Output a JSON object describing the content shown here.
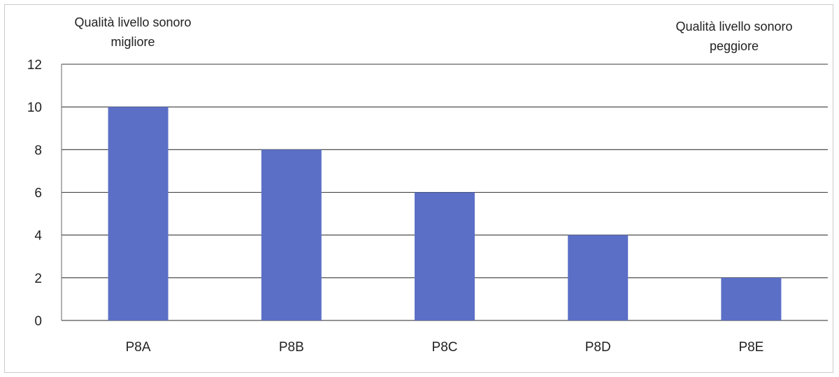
{
  "chart_data": {
    "type": "bar",
    "categories": [
      "P8A",
      "P8B",
      "P8C",
      "P8D",
      "P8E"
    ],
    "values": [
      10,
      8,
      6,
      4,
      2
    ],
    "ylim": [
      0,
      12
    ],
    "yticks": [
      0,
      2,
      4,
      6,
      8,
      10,
      12
    ],
    "grid": true,
    "bar_color": "#5b6fc6",
    "annotations": {
      "left": [
        "Qualità livello sonoro",
        "migliore"
      ],
      "right": [
        "Qualità livello sonoro",
        "peggiore"
      ]
    }
  }
}
